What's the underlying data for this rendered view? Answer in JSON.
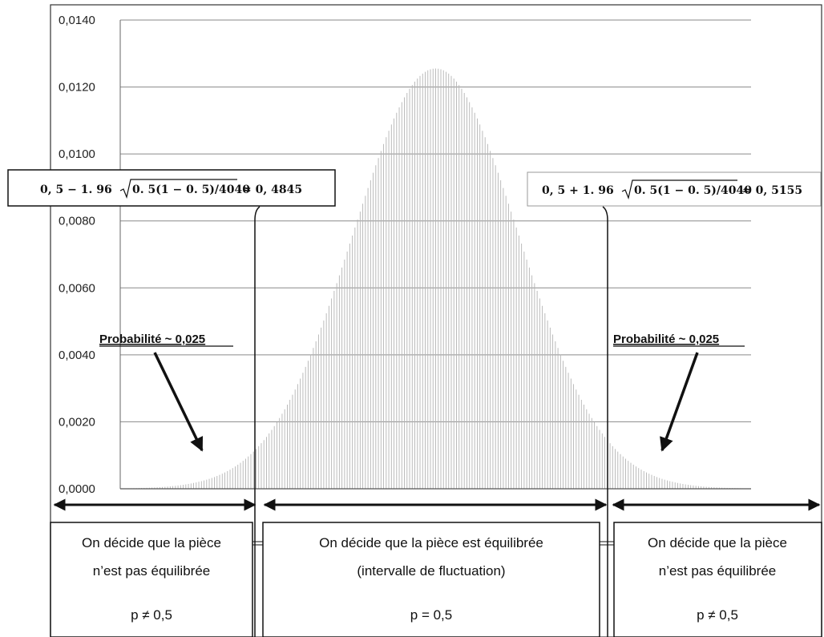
{
  "chart_data": {
    "type": "bar",
    "distribution": "binomial",
    "n": 4040,
    "p": 0.5,
    "x_range": [
      0.47,
      0.53
    ],
    "ylim": [
      0,
      0.014
    ],
    "yticks": [
      "0,0000",
      "0,0020",
      "0,0040",
      "0,0060",
      "0,0080",
      "0,0100",
      "0,0120",
      "0,0140"
    ],
    "ytick_values": [
      0,
      0.002,
      0.004,
      0.006,
      0.008,
      0.01,
      0.012,
      0.014
    ],
    "grid": true,
    "peak_value": 0.01255,
    "bar_color": "#b4b4b4",
    "lower_bound": 0.4845,
    "upper_bound": 0.5155
  },
  "annotations": {
    "formula_left_main": "0, 5 − 1. 96",
    "formula_left_rad": "0. 5(1 − 0. 5)/4040",
    "formula_left_result": "≈ 0, 4845",
    "formula_right_main": "0, 5 + 1. 96",
    "formula_right_rad": "0. 5(1 − 0. 5)/4040",
    "formula_right_result": "≈ 0, 5155",
    "prob_left": "Probabilité ~ 0,025",
    "prob_right": "Probabilité ~ 0,025"
  },
  "boxes": {
    "left": {
      "line1": "On décide que la pièce",
      "line2": "n’est pas équilibrée",
      "line3": "p ≠ 0,5"
    },
    "middle": {
      "line1": "On décide que la pièce est équilibrée",
      "line2": "(intervalle de fluctuation)",
      "line3": "p = 0,5"
    },
    "right": {
      "line1": "On décide que la pièce",
      "line2": "n’est pas équilibrée",
      "line3": "p ≠ 0,5"
    }
  }
}
